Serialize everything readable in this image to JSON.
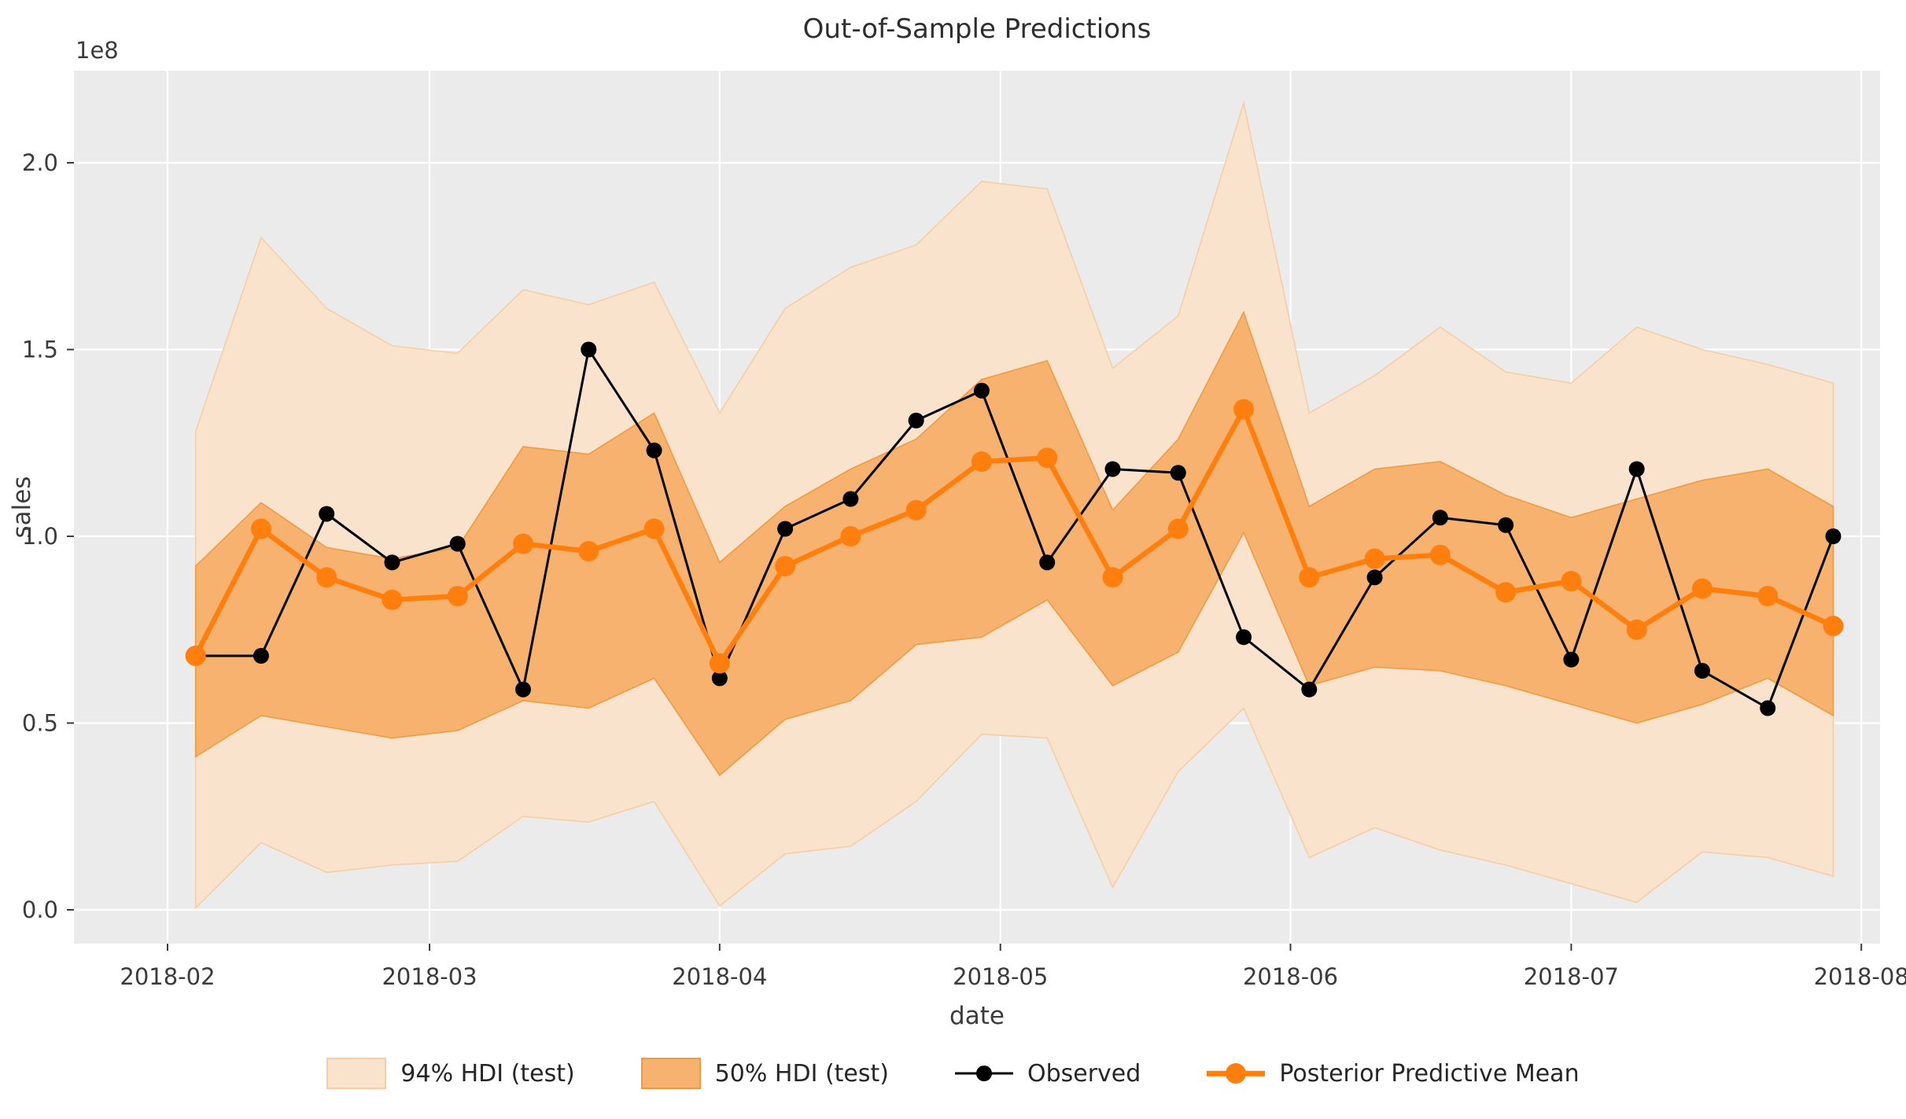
{
  "chart_data": {
    "type": "line",
    "title": "Out-of-Sample Predictions",
    "xlabel": "date",
    "ylabel": "sales",
    "y_offset_text": "1e8",
    "background": {
      "figure": "#ffffff",
      "plot": "#ebebeb",
      "grid": "#ffffff"
    },
    "ylim": [
      -0.0905,
      2.2463
    ],
    "y_ticks": [
      0.0,
      0.5,
      1.0,
      1.5,
      2.0
    ],
    "x_domain": [
      "2018-01-22",
      "2018-08-03"
    ],
    "x_ticks": [
      {
        "date": "2018-02-01",
        "label": "2018-02"
      },
      {
        "date": "2018-03-01",
        "label": "2018-03"
      },
      {
        "date": "2018-04-01",
        "label": "2018-04"
      },
      {
        "date": "2018-05-01",
        "label": "2018-05"
      },
      {
        "date": "2018-06-01",
        "label": "2018-06"
      },
      {
        "date": "2018-07-01",
        "label": "2018-07"
      },
      {
        "date": "2018-08-01",
        "label": "2018-08"
      }
    ],
    "dates": [
      "2018-02-04",
      "2018-02-11",
      "2018-02-18",
      "2018-02-25",
      "2018-03-04",
      "2018-03-11",
      "2018-03-18",
      "2018-03-25",
      "2018-04-01",
      "2018-04-08",
      "2018-04-15",
      "2018-04-22",
      "2018-04-29",
      "2018-05-06",
      "2018-05-13",
      "2018-05-20",
      "2018-05-27",
      "2018-06-03",
      "2018-06-10",
      "2018-06-17",
      "2018-06-24",
      "2018-07-01",
      "2018-07-08",
      "2018-07-15",
      "2018-07-22",
      "2018-07-29"
    ],
    "bands": [
      {
        "name": "94% HDI (test)",
        "fill": "#f9e3cc",
        "edge": "#f6cda4",
        "lower": [
          0.005,
          0.18,
          0.1,
          0.12,
          0.13,
          0.25,
          0.235,
          0.29,
          0.01,
          0.15,
          0.17,
          0.29,
          0.47,
          0.46,
          0.06,
          0.37,
          0.54,
          0.14,
          0.22,
          0.16,
          0.12,
          0.07,
          0.02,
          0.155,
          0.14,
          0.09
        ],
        "upper": [
          1.28,
          1.8,
          1.61,
          1.51,
          1.49,
          1.66,
          1.62,
          1.68,
          1.33,
          1.61,
          1.72,
          1.78,
          1.95,
          1.93,
          1.45,
          1.59,
          2.16,
          1.33,
          1.43,
          1.56,
          1.44,
          1.41,
          1.56,
          1.5,
          1.46,
          1.41
        ]
      },
      {
        "name": "50% HDI (test)",
        "fill": "#f6b26e",
        "edge": "#ef9b42",
        "lower": [
          0.41,
          0.52,
          0.49,
          0.46,
          0.48,
          0.56,
          0.54,
          0.62,
          0.36,
          0.51,
          0.56,
          0.71,
          0.73,
          0.83,
          0.6,
          0.69,
          1.01,
          0.6,
          0.65,
          0.64,
          0.6,
          0.55,
          0.5,
          0.55,
          0.62,
          0.52
        ],
        "upper": [
          0.92,
          1.09,
          0.97,
          0.94,
          0.97,
          1.24,
          1.22,
          1.33,
          0.93,
          1.08,
          1.18,
          1.26,
          1.42,
          1.47,
          1.07,
          1.26,
          1.6,
          1.08,
          1.18,
          1.2,
          1.11,
          1.05,
          1.1,
          1.15,
          1.18,
          1.08
        ]
      }
    ],
    "series": [
      {
        "name": "Observed",
        "color": "#000000",
        "line_width": 3,
        "marker_radius": 10,
        "values": [
          0.68,
          0.68,
          1.06,
          0.93,
          0.98,
          0.59,
          1.5,
          1.23,
          0.62,
          1.02,
          1.1,
          1.31,
          1.39,
          0.93,
          1.18,
          1.17,
          0.73,
          0.59,
          0.89,
          1.05,
          1.03,
          0.67,
          1.18,
          0.64,
          0.54,
          1.0
        ]
      },
      {
        "name": "Posterior Predictive Mean",
        "color": "#ff7f0e",
        "line_width": 6.5,
        "marker_radius": 13,
        "values": [
          0.68,
          1.02,
          0.89,
          0.83,
          0.84,
          0.98,
          0.96,
          1.02,
          0.66,
          0.92,
          1.0,
          1.07,
          1.2,
          1.21,
          0.89,
          1.02,
          1.34,
          0.89,
          0.94,
          0.95,
          0.85,
          0.88,
          0.75,
          0.86,
          0.84,
          0.76
        ]
      }
    ],
    "legend": [
      {
        "label": "94% HDI (test)",
        "kind": "band",
        "ref": 0
      },
      {
        "label": "50% HDI (test)",
        "kind": "band",
        "ref": 1
      },
      {
        "label": "Observed",
        "kind": "line",
        "ref": 0
      },
      {
        "label": "Posterior Predictive Mean",
        "kind": "line",
        "ref": 1
      }
    ],
    "legend_position": "bottom-center",
    "grid": true
  }
}
